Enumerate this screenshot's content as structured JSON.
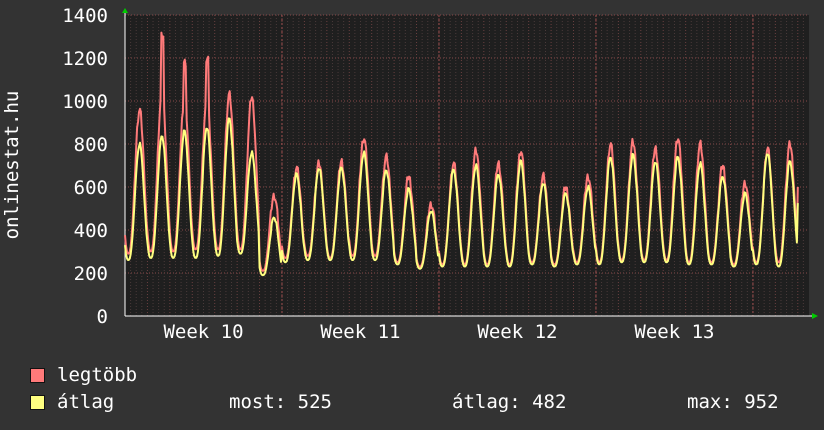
{
  "chart_data": {
    "type": "line",
    "ylabel": "onlinestat.hu",
    "ylim": [
      0,
      1400
    ],
    "yticks": [
      0,
      200,
      400,
      600,
      800,
      1000,
      1200,
      1400
    ],
    "xticks": [
      {
        "label": "Week 10",
        "day": 3.5
      },
      {
        "label": "Week 11",
        "day": 10.5
      },
      {
        "label": "Week 12",
        "day": 17.5
      },
      {
        "label": "Week 13",
        "day": 24.5
      }
    ],
    "xlim_days": [
      0,
      30.5
    ],
    "grid": true,
    "daily": [
      {
        "day": 0,
        "max": 960,
        "max_peak": 960,
        "avg": 800,
        "avg_min": 260,
        "max_min": 290
      },
      {
        "day": 1,
        "max": 1040,
        "max_peak": 1300,
        "avg": 840,
        "avg_min": 270,
        "max_min": 300
      },
      {
        "day": 2,
        "max": 1000,
        "max_peak": 1180,
        "avg": 860,
        "avg_min": 270,
        "max_min": 300
      },
      {
        "day": 3,
        "max": 1000,
        "max_peak": 1200,
        "avg": 880,
        "avg_min": 270,
        "max_min": 310
      },
      {
        "day": 4,
        "max": 1030,
        "max_peak": 1030,
        "avg": 920,
        "avg_min": 280,
        "max_min": 310
      },
      {
        "day": 5,
        "max": 1020,
        "max_peak": 1020,
        "avg": 760,
        "avg_min": 290,
        "max_min": 310
      },
      {
        "day": 6,
        "max": 560,
        "max_peak": 560,
        "avg": 460,
        "avg_min": 190,
        "max_min": 210
      },
      {
        "day": 7,
        "max": 690,
        "max_peak": 690,
        "avg": 660,
        "avg_min": 250,
        "max_min": 270
      },
      {
        "day": 8,
        "max": 710,
        "max_peak": 710,
        "avg": 690,
        "avg_min": 260,
        "max_min": 280
      },
      {
        "day": 9,
        "max": 720,
        "max_peak": 720,
        "avg": 690,
        "avg_min": 260,
        "max_min": 270
      },
      {
        "day": 10,
        "max": 830,
        "max_peak": 830,
        "avg": 760,
        "avg_min": 260,
        "max_min": 280
      },
      {
        "day": 11,
        "max": 740,
        "max_peak": 740,
        "avg": 680,
        "avg_min": 260,
        "max_min": 280
      },
      {
        "day": 12,
        "max": 650,
        "max_peak": 650,
        "avg": 590,
        "avg_min": 240,
        "max_min": 250
      },
      {
        "day": 13,
        "max": 520,
        "max_peak": 520,
        "avg": 490,
        "avg_min": 220,
        "max_min": 230
      },
      {
        "day": 14,
        "max": 710,
        "max_peak": 710,
        "avg": 680,
        "avg_min": 230,
        "max_min": 240
      },
      {
        "day": 15,
        "max": 770,
        "max_peak": 770,
        "avg": 700,
        "avg_min": 230,
        "max_min": 240
      },
      {
        "day": 16,
        "max": 710,
        "max_peak": 710,
        "avg": 660,
        "avg_min": 230,
        "max_min": 240
      },
      {
        "day": 17,
        "max": 770,
        "max_peak": 770,
        "avg": 720,
        "avg_min": 230,
        "max_min": 240
      },
      {
        "day": 18,
        "max": 650,
        "max_peak": 650,
        "avg": 620,
        "avg_min": 240,
        "max_min": 250
      },
      {
        "day": 19,
        "max": 600,
        "max_peak": 600,
        "avg": 570,
        "avg_min": 230,
        "max_min": 240
      },
      {
        "day": 20,
        "max": 650,
        "max_peak": 650,
        "avg": 600,
        "avg_min": 240,
        "max_min": 250
      },
      {
        "day": 21,
        "max": 800,
        "max_peak": 800,
        "avg": 740,
        "avg_min": 240,
        "max_min": 250
      },
      {
        "day": 22,
        "max": 810,
        "max_peak": 810,
        "avg": 750,
        "avg_min": 250,
        "max_min": 260
      },
      {
        "day": 23,
        "max": 780,
        "max_peak": 780,
        "avg": 720,
        "avg_min": 250,
        "max_min": 260
      },
      {
        "day": 24,
        "max": 830,
        "max_peak": 830,
        "avg": 740,
        "avg_min": 250,
        "max_min": 260
      },
      {
        "day": 25,
        "max": 800,
        "max_peak": 800,
        "avg": 710,
        "avg_min": 240,
        "max_min": 250
      },
      {
        "day": 26,
        "max": 700,
        "max_peak": 700,
        "avg": 650,
        "avg_min": 240,
        "max_min": 250
      },
      {
        "day": 27,
        "max": 620,
        "max_peak": 620,
        "avg": 570,
        "avg_min": 230,
        "max_min": 240
      },
      {
        "day": 28,
        "max": 780,
        "max_peak": 780,
        "avg": 760,
        "avg_min": 240,
        "max_min": 250
      },
      {
        "day": 29,
        "max": 800,
        "max_peak": 800,
        "avg": 720,
        "avg_min": 230,
        "max_min": 250
      }
    ],
    "end_value": {
      "max": 600,
      "avg": 525
    },
    "series": [
      {
        "key": "max",
        "name": "legtöbb",
        "color": "#ff7a7a"
      },
      {
        "key": "avg",
        "name": "átlag",
        "color": "#ffff80"
      }
    ]
  },
  "legend": {
    "items": [
      {
        "name": "legtöbb",
        "color": "#ff7a7a"
      },
      {
        "name": "átlag",
        "color": "#ffff80"
      }
    ],
    "stats": {
      "most": "most: 525",
      "atlag": "átlag: 482",
      "max": "max: 952"
    }
  }
}
